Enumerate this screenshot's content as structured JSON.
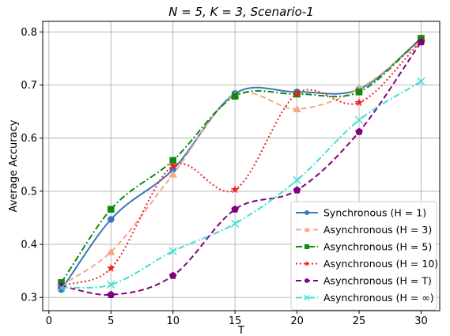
{
  "chart_data": {
    "type": "line",
    "title": "N = 5, K = 3, Scenario-1",
    "xlabel": "T",
    "ylabel": "Average Accuracy",
    "xlim": [
      -0.5,
      31.5
    ],
    "ylim": [
      0.275,
      0.82
    ],
    "x_ticks": [
      0,
      5,
      10,
      15,
      20,
      25,
      30
    ],
    "y_ticks": [
      0.3,
      0.4,
      0.5,
      0.6,
      0.7,
      0.8
    ],
    "grid": true,
    "legend_position": "lower-right",
    "x": [
      1,
      5,
      10,
      15,
      20,
      25,
      30
    ],
    "series": [
      {
        "name": "Synchronous (H = 1)",
        "values": [
          0.315,
          0.447,
          0.541,
          0.684,
          0.687,
          0.692,
          0.787
        ],
        "color": "#3b78b8",
        "dash": "solid",
        "marker": "circle"
      },
      {
        "name": "Asynchronous (H = 3)",
        "values": [
          0.322,
          0.386,
          0.532,
          0.681,
          0.655,
          0.693,
          0.782
        ],
        "color": "#f4a98a",
        "dash": "dashed",
        "marker": "triangle"
      },
      {
        "name": "Asynchronous (H = 5)",
        "values": [
          0.328,
          0.466,
          0.558,
          0.679,
          0.683,
          0.687,
          0.788
        ],
        "color": "#118811",
        "dash": "dashdot",
        "marker": "square"
      },
      {
        "name": "Asynchronous (H = 10)",
        "values": [
          0.321,
          0.355,
          0.548,
          0.503,
          0.684,
          0.667,
          0.782
        ],
        "color": "#ee2222",
        "dash": "dotted",
        "marker": "star"
      },
      {
        "name": "Asynchronous (H = T)",
        "values": [
          0.321,
          0.305,
          0.341,
          0.466,
          0.502,
          0.612,
          0.781
        ],
        "color": "#800080",
        "dash": "dashed",
        "marker": "pentagon"
      },
      {
        "name": "Asynchronous (H = ∞)",
        "values": [
          0.318,
          0.324,
          0.387,
          0.439,
          0.521,
          0.634,
          0.707
        ],
        "color": "#40e0d0",
        "dash": "dashdot",
        "marker": "x"
      }
    ]
  }
}
